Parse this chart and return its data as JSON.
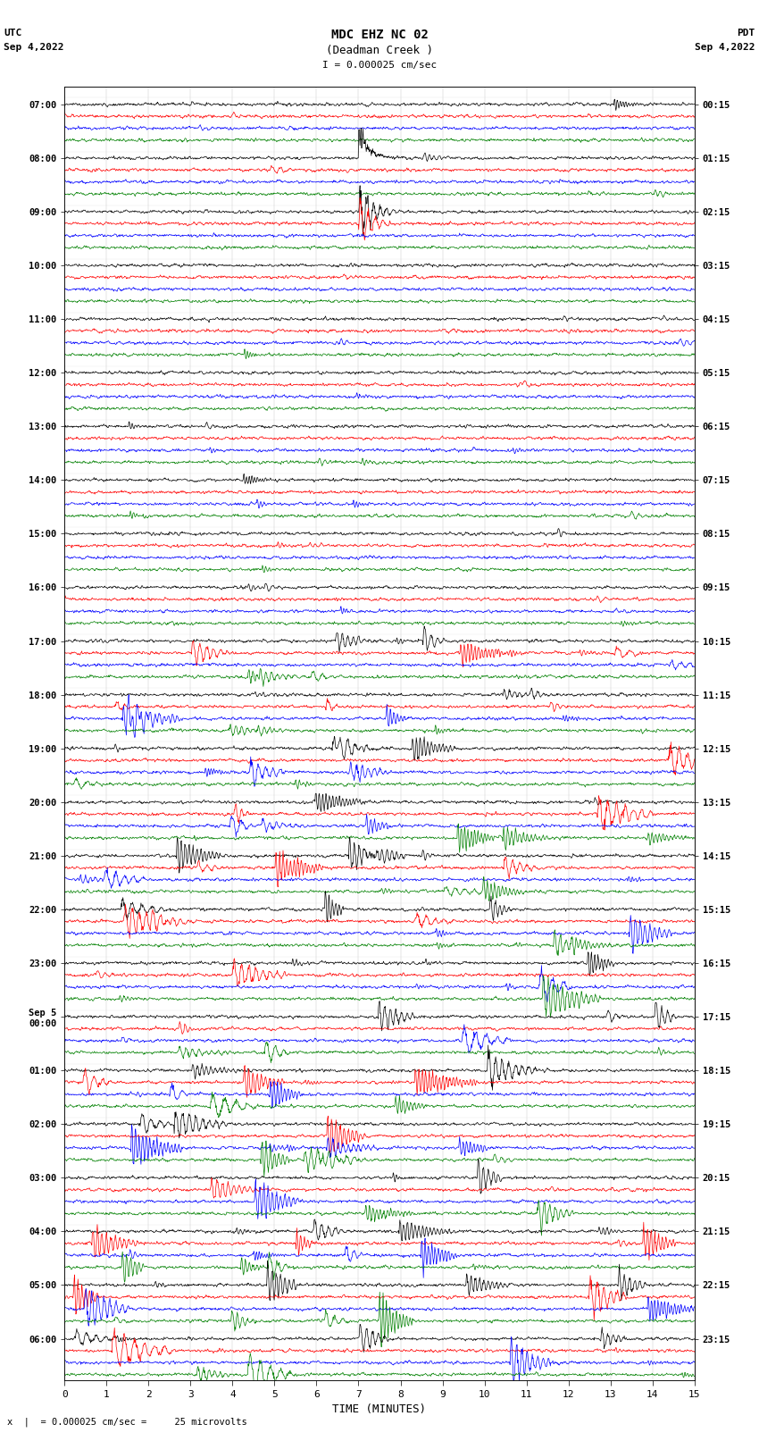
{
  "title_line1": "MDC EHZ NC 02",
  "title_line2": "(Deadman Creek )",
  "scale_label": "I = 0.000025 cm/sec",
  "utc_label": "UTC",
  "utc_date": "Sep 4,2022",
  "pdt_label": "PDT",
  "pdt_date": "Sep 4,2022",
  "xlabel": "TIME (MINUTES)",
  "footer_label": "x  |  = 0.000025 cm/sec =     25 microvolts",
  "background_color": "#ffffff",
  "trace_colors": [
    "black",
    "red",
    "blue",
    "green"
  ],
  "left_times": [
    "07:00",
    "08:00",
    "09:00",
    "10:00",
    "11:00",
    "12:00",
    "13:00",
    "14:00",
    "15:00",
    "16:00",
    "17:00",
    "18:00",
    "19:00",
    "20:00",
    "21:00",
    "22:00",
    "23:00",
    "Sep 5\n00:00",
    "01:00",
    "02:00",
    "03:00",
    "04:00",
    "05:00",
    "06:00"
  ],
  "right_times": [
    "00:15",
    "01:15",
    "02:15",
    "03:15",
    "04:15",
    "05:15",
    "06:15",
    "07:15",
    "08:15",
    "09:15",
    "10:15",
    "11:15",
    "12:15",
    "13:15",
    "14:15",
    "15:15",
    "16:15",
    "17:15",
    "18:15",
    "19:15",
    "20:15",
    "21:15",
    "22:15",
    "23:15"
  ],
  "n_groups": 24,
  "traces_per_group": 4,
  "xmin": 0,
  "xmax": 15,
  "noise_seed": 42
}
